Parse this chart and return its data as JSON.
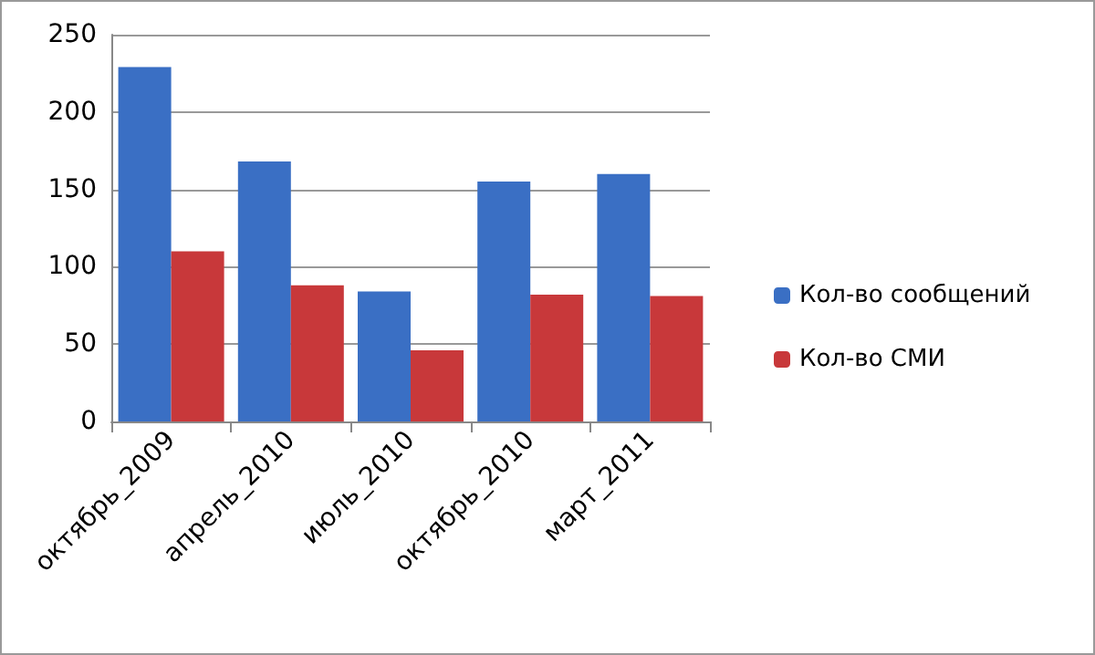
{
  "chart_data": {
    "type": "bar",
    "categories": [
      "октябрь_2009",
      "апрель_2010",
      "июль_2010",
      "октябрь_2010",
      "март_2011"
    ],
    "series": [
      {
        "name": "Кол-во сообщений",
        "color": "#3a6fc4",
        "values": [
          229,
          168,
          84,
          155,
          160
        ]
      },
      {
        "name": "Кол-во СМИ",
        "color": "#c8383a",
        "values": [
          110,
          88,
          46,
          82,
          81
        ]
      }
    ],
    "ylim": [
      0,
      250
    ],
    "yticks": [
      0,
      50,
      100,
      150,
      200,
      250
    ],
    "grid": "y",
    "legend": "right"
  }
}
